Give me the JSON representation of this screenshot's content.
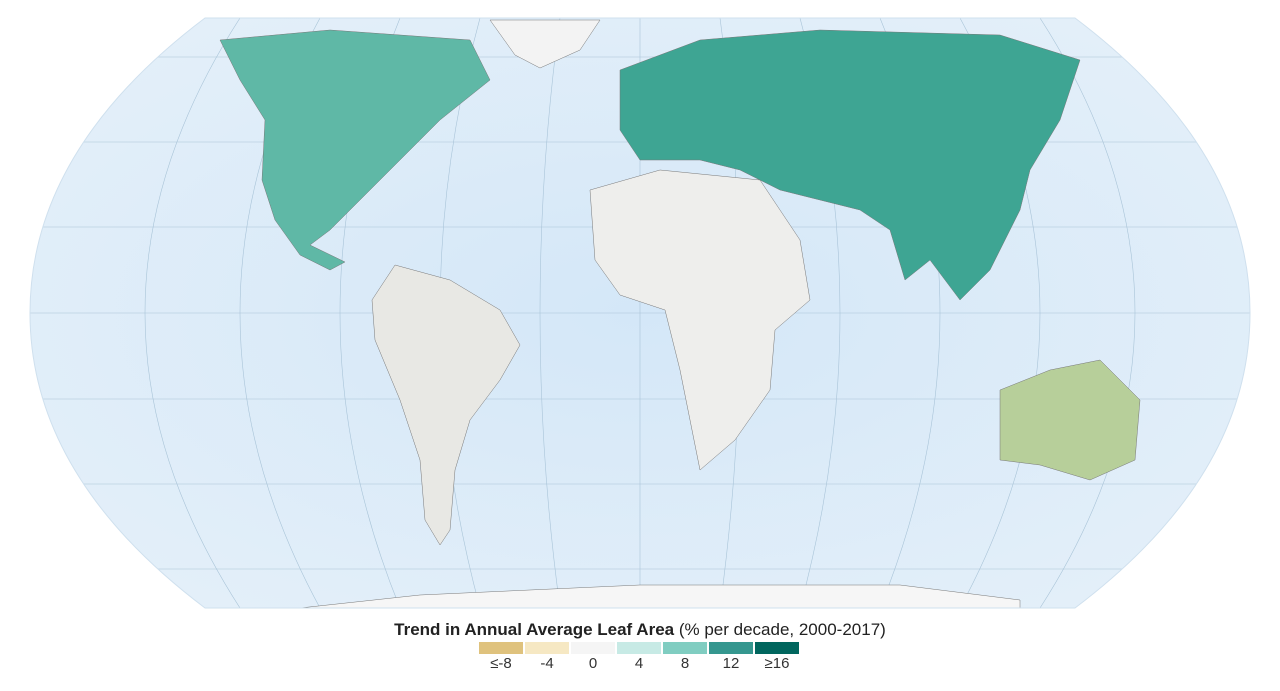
{
  "legend": {
    "title": "Trend in Annual Average Leaf Area",
    "subtitle": "(% per decade, 2000-2017)",
    "classes": [
      {
        "label": "≤-8",
        "color": "#dfc27d"
      },
      {
        "label": "-4",
        "color": "#f6e8c3"
      },
      {
        "label": "0",
        "color": "#f5f5f5"
      },
      {
        "label": "4",
        "color": "#c7eae5"
      },
      {
        "label": "8",
        "color": "#80cdc1"
      },
      {
        "label": "12",
        "color": "#35978f"
      },
      {
        "label": "≥16",
        "color": "#01665e"
      }
    ]
  },
  "map": {
    "projection": "Robinson",
    "ocean_color": "#d6e8f7"
  }
}
